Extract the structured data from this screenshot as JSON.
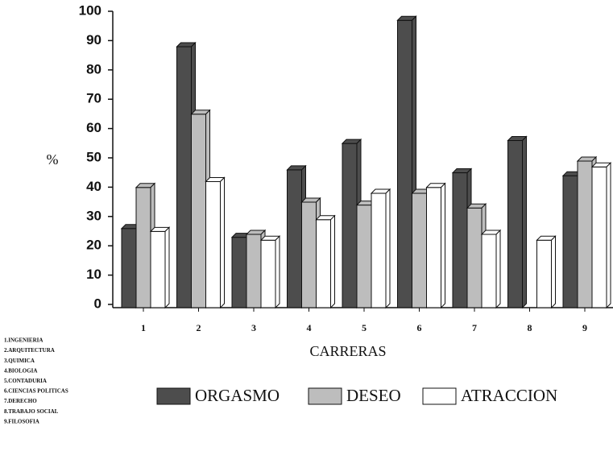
{
  "chart_data": {
    "type": "bar3d",
    "ylabel": "%",
    "xlabel": "CARRERAS",
    "categories": [
      "1",
      "2",
      "3",
      "4",
      "5",
      "6",
      "7",
      "8",
      "9"
    ],
    "series": [
      {
        "name": "ORGASMO",
        "color": "#4d4d4d",
        "values": [
          27,
          89,
          24,
          47,
          56,
          98,
          46,
          57,
          45
        ]
      },
      {
        "name": "DESEO",
        "color": "#bdbdbd",
        "values": [
          41,
          66,
          25,
          36,
          35,
          39,
          34,
          0,
          50
        ]
      },
      {
        "name": "ATRACCION",
        "color": "#ffffff",
        "values": [
          26,
          43,
          23,
          30,
          39,
          41,
          25,
          23,
          48
        ]
      }
    ],
    "ylim": [
      0,
      100
    ],
    "yticks": [
      0,
      10,
      20,
      30,
      40,
      50,
      60,
      70,
      80,
      90,
      100
    ],
    "notes": [
      "1.INGENIERIA",
      "2.ARQUITECTURA",
      "3.QUIMICA",
      "4.BIOLOGIA",
      "5.CONTADURIA",
      "6.CIENCIAS POLITICAS",
      "7.DERECHO",
      "8.TRABAJO SOCIAL",
      "9.FILOSOFIA"
    ]
  }
}
